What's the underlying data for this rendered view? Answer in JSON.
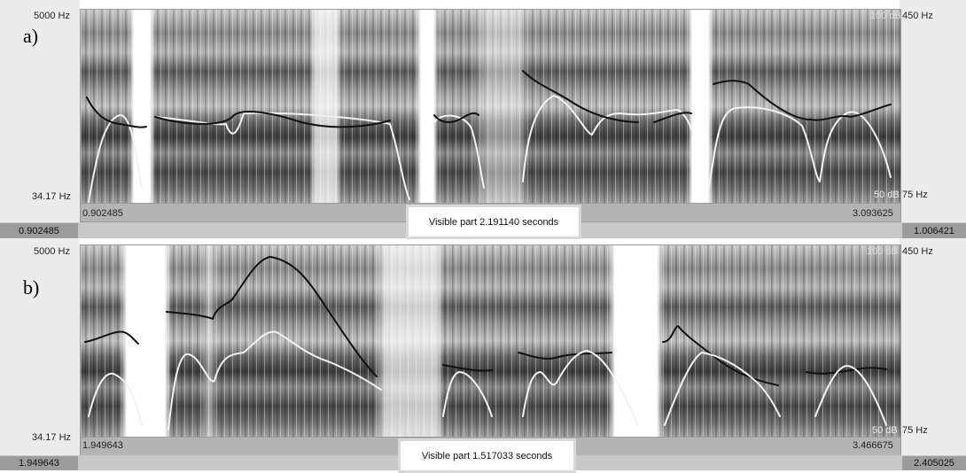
{
  "panels": [
    {
      "label": "a)",
      "freq_top": "5000 Hz",
      "freq_bottom": "34.17 Hz",
      "db_top": "100 dB",
      "db_bottom": "50 dB",
      "pitch_top": "450 Hz",
      "pitch_bottom": "75 Hz",
      "time_start": "0.902485",
      "time_end": "3.093625",
      "visible_part": "Visible part 2.191140 seconds",
      "window_start": "0.902485",
      "window_end": "1.006421"
    },
    {
      "label": "b)",
      "freq_top": "5000 Hz",
      "freq_bottom": "34.17 Hz",
      "db_top": "100 dB",
      "db_bottom": "50 dB",
      "pitch_top": "450 Hz",
      "pitch_bottom": "75 Hz",
      "time_start": "1.949643",
      "time_end": "3.466675",
      "visible_part": "Visible part 1.517033 seconds",
      "window_start": "1.949643",
      "window_end": "2.405025"
    }
  ]
}
